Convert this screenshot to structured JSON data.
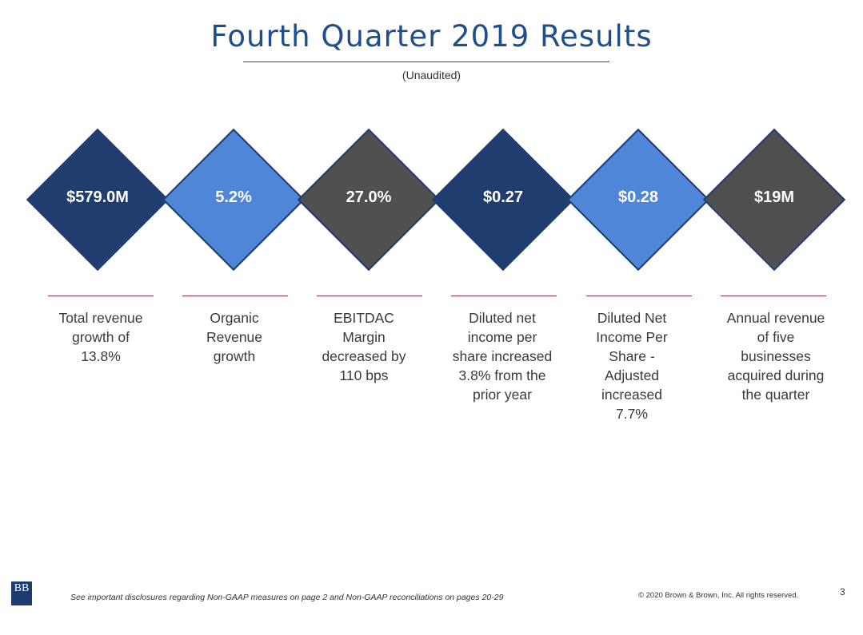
{
  "header": {
    "title": "Fourth Quarter 2019 Results",
    "subtitle": "(Unaudited)"
  },
  "metrics": [
    {
      "value": "$579.0M",
      "color": "#1f3e6f",
      "description": "Total revenue\ngrowth of\n13.8%"
    },
    {
      "value": "5.2%",
      "color": "#4f86d8",
      "description": "Organic\nRevenue\ngrowth"
    },
    {
      "value": "27.0%",
      "color": "#505050",
      "description": "EBITDAC\nMargin\ndecreased by\n110 bps"
    },
    {
      "value": "$0.27",
      "color": "#1f3e6f",
      "description": "Diluted net\nincome per\nshare increased\n3.8% from the\nprior year"
    },
    {
      "value": "$0.28",
      "color": "#4f86d8",
      "description": "Diluted Net\nIncome Per\nShare -\nAdjusted\nincreased\n7.7%"
    },
    {
      "value": "$19M",
      "color": "#505050",
      "description": "Annual revenue\nof five\nbusinesses\nacquired during\nthe quarter"
    }
  ],
  "footer": {
    "logo_text": "BB",
    "disclosure": "See important disclosures regarding Non-GAAP measures on page 2 and Non-GAAP reconciliations on pages 20-29",
    "copyright": "© 2020 Brown & Brown, Inc. All rights reserved.",
    "page_number": "3"
  }
}
